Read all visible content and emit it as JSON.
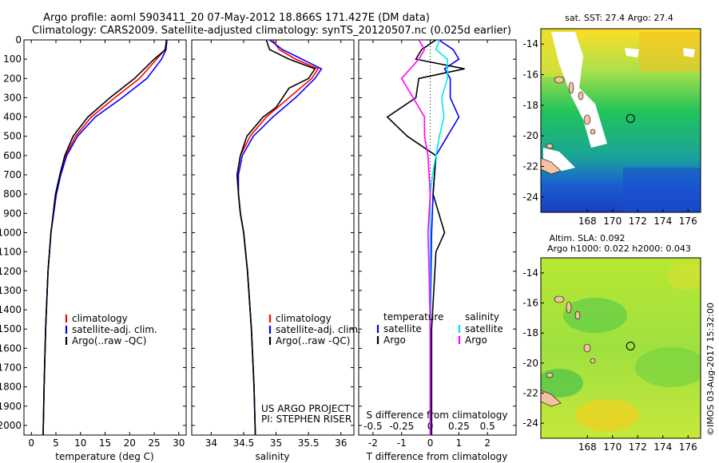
{
  "header": {
    "line1": "Argo profile: aoml 5903411_20 07-May-2012 18.866S 171.427E (DM data)",
    "line2": "Climatology: CARS2009. Satellite-adjusted climatology: synTS_20120507.nc (0.025d earlier)"
  },
  "depth_ticks": [
    0,
    100,
    200,
    300,
    400,
    500,
    600,
    700,
    800,
    900,
    1000,
    1100,
    1200,
    1300,
    1400,
    1500,
    1600,
    1700,
    1800,
    1900,
    2000
  ],
  "colors": {
    "climatology": "#ff0000",
    "satellite": "#0000ff",
    "argo": "#000000",
    "temp_diff_sat": "#0000ff",
    "sal_diff_sat": "#00e5ee",
    "sal_diff_argo": "#ff00ff"
  },
  "chart_data": [
    {
      "type": "line",
      "xlabel": "temperature (deg C)",
      "xlim": [
        -1.5,
        31.5
      ],
      "ylim": [
        2050,
        0
      ],
      "xticks": [
        0,
        5,
        10,
        15,
        20,
        25,
        30
      ],
      "legend": [
        "climatology",
        "satellite-adj. clim.",
        "Argo(..raw -QC)"
      ],
      "series": [
        {
          "name": "climatology",
          "depth": [
            0,
            50,
            100,
            200,
            300,
            400,
            500,
            600,
            700,
            800,
            1000,
            1200,
            1500,
            1800,
            2050
          ],
          "values": [
            27.5,
            27.2,
            25.5,
            22.0,
            17.0,
            12.2,
            9.0,
            7.0,
            5.9,
            5.0,
            4.0,
            3.4,
            2.9,
            2.6,
            2.4
          ]
        },
        {
          "name": "satellite-adj. clim.",
          "depth": [
            0,
            50,
            100,
            200,
            300,
            400,
            500,
            600,
            700,
            800,
            1000,
            1200,
            1500,
            1800,
            2050
          ],
          "values": [
            27.6,
            27.4,
            26.5,
            23.5,
            18.5,
            13.0,
            9.4,
            7.2,
            6.0,
            5.1,
            4.0,
            3.4,
            2.9,
            2.6,
            2.4
          ]
        },
        {
          "name": "Argo(..raw -QC)",
          "depth": [
            0,
            50,
            100,
            200,
            300,
            400,
            500,
            600,
            700,
            800,
            1000,
            1200,
            1500,
            1800,
            2050
          ],
          "values": [
            27.5,
            27.3,
            25.0,
            21.0,
            16.0,
            11.5,
            8.5,
            6.8,
            5.8,
            4.9,
            4.0,
            3.4,
            2.9,
            2.6,
            2.4
          ]
        }
      ]
    },
    {
      "type": "line",
      "xlabel": "salinity",
      "xlim": [
        33.7,
        36.2
      ],
      "ylim": [
        2050,
        0
      ],
      "xticks": [
        34,
        34.5,
        35,
        35.5,
        36
      ],
      "legend": [
        "climatology",
        "satellite-adj. clim.",
        "Argo(..raw -QC)"
      ],
      "annotation": [
        "US ARGO PROJECT",
        "PI: STEPHEN RISER"
      ],
      "series": [
        {
          "name": "climatology",
          "depth": [
            0,
            50,
            100,
            150,
            200,
            300,
            400,
            500,
            600,
            700,
            800,
            900,
            1000,
            1200,
            1500,
            1800,
            2050
          ],
          "values": [
            34.95,
            35.05,
            35.3,
            35.65,
            35.55,
            35.2,
            34.85,
            34.6,
            34.45,
            34.4,
            34.42,
            34.45,
            34.5,
            34.56,
            34.62,
            34.66,
            34.68
          ]
        },
        {
          "name": "satellite-adj. clim.",
          "depth": [
            0,
            50,
            100,
            150,
            200,
            300,
            400,
            500,
            600,
            700,
            800,
            900,
            1000,
            1200,
            1500,
            1800,
            2050
          ],
          "values": [
            34.9,
            35.1,
            35.4,
            35.7,
            35.6,
            35.3,
            34.95,
            34.65,
            34.48,
            34.42,
            34.42,
            34.45,
            34.5,
            34.56,
            34.62,
            34.66,
            34.68
          ]
        },
        {
          "name": "Argo(..raw -QC)",
          "depth": [
            0,
            50,
            100,
            150,
            200,
            250,
            300,
            350,
            400,
            500,
            600,
            700,
            800,
            900,
            1000,
            1200,
            1500,
            1800,
            2050
          ],
          "values": [
            34.85,
            34.9,
            35.2,
            35.6,
            35.5,
            35.2,
            35.1,
            35.0,
            34.8,
            34.55,
            34.45,
            34.4,
            34.42,
            34.45,
            34.5,
            34.56,
            34.62,
            34.66,
            34.68
          ]
        }
      ]
    },
    {
      "type": "line",
      "xlabel": "T difference from climatology",
      "x2label": "S difference from climatology",
      "xlim": [
        -2.5,
        3.0
      ],
      "x2lim": [
        -0.625,
        0.75
      ],
      "ylim": [
        2050,
        0
      ],
      "xticks": [
        -2,
        -1,
        0,
        1,
        2
      ],
      "x2ticks": [
        -0.5,
        -0.25,
        0,
        0.25,
        0.5
      ],
      "legend_temperature": {
        "title": "temperature",
        "entries": [
          "satellite",
          "Argo"
        ]
      },
      "legend_salinity": {
        "title": "salinity",
        "entries": [
          "satellite",
          "Argo"
        ]
      },
      "series": [
        {
          "name": "temperature satellite",
          "depth": [
            0,
            50,
            100,
            150,
            200,
            300,
            400,
            500,
            600,
            800,
            1000,
            1500,
            2050
          ],
          "values": [
            0.3,
            0.8,
            1.0,
            0.5,
            0.7,
            0.7,
            1.0,
            0.6,
            0.2,
            0.1,
            0.05,
            0.0,
            0.0
          ]
        },
        {
          "name": "temperature Argo",
          "depth": [
            0,
            50,
            100,
            150,
            200,
            300,
            400,
            500,
            600,
            800,
            1000,
            1100,
            1500,
            2050
          ],
          "values": [
            0.2,
            -0.3,
            -0.5,
            1.2,
            -0.4,
            -0.5,
            -1.5,
            -0.8,
            0.2,
            0.1,
            0.5,
            0.2,
            0.05,
            0.05
          ]
        },
        {
          "name": "salinity satellite",
          "depth": [
            0,
            50,
            100,
            200,
            300,
            400,
            500,
            600,
            700,
            800,
            1000,
            1500,
            2050
          ],
          "values": [
            0.08,
            0.05,
            0.15,
            0.15,
            0.1,
            0.12,
            0.08,
            0.05,
            0.02,
            0.0,
            0.0,
            0.0,
            0.0
          ]
        },
        {
          "name": "salinity Argo",
          "depth": [
            0,
            50,
            100,
            200,
            300,
            400,
            500,
            600,
            800,
            1000,
            1200,
            1500,
            2050
          ],
          "values": [
            -0.1,
            -0.05,
            -0.1,
            -0.25,
            -0.15,
            -0.05,
            -0.05,
            -0.02,
            0.0,
            -0.02,
            -0.01,
            0.0,
            0.0
          ]
        }
      ]
    },
    {
      "type": "heatmap",
      "title": "sat. SST: 27.4 Argo: 27.4",
      "xlim": [
        164.3,
        177.0
      ],
      "ylim": [
        -25,
        -13
      ],
      "xticks": [
        168,
        170,
        172,
        174,
        176
      ],
      "yticks": [
        -14,
        -16,
        -18,
        -20,
        -22,
        -24
      ],
      "marker": {
        "lon": 171.427,
        "lat": -18.866
      }
    },
    {
      "type": "heatmap",
      "title_line1": "Altim. SLA: 0.092",
      "title_line2": "Argo h1000: 0.022 h2000: 0.043",
      "xlim": [
        164.3,
        177.0
      ],
      "ylim": [
        -25,
        -13
      ],
      "xticks": [
        168,
        170,
        172,
        174,
        176
      ],
      "yticks": [
        -14,
        -16,
        -18,
        -20,
        -22,
        -24
      ],
      "marker": {
        "lon": 171.427,
        "lat": -18.866
      }
    }
  ],
  "side_label": "©IMOS 03-Aug-2017 15:32:00"
}
